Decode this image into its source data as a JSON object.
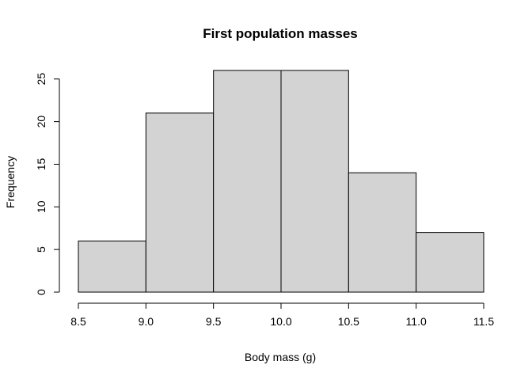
{
  "chart_data": {
    "type": "bar",
    "title": "First population masses",
    "xlabel": "Body mass (g)",
    "ylabel": "Frequency",
    "bins": [
      {
        "start": 8.5,
        "end": 9.0,
        "count": 6
      },
      {
        "start": 9.0,
        "end": 9.5,
        "count": 21
      },
      {
        "start": 9.5,
        "end": 10.0,
        "count": 26
      },
      {
        "start": 10.0,
        "end": 10.5,
        "count": 26
      },
      {
        "start": 10.5,
        "end": 11.0,
        "count": 14
      },
      {
        "start": 11.0,
        "end": 11.5,
        "count": 7
      }
    ],
    "x_ticks": [
      "8.5",
      "9.0",
      "9.5",
      "10.0",
      "10.5",
      "11.0",
      "11.5"
    ],
    "y_ticks": [
      "0",
      "5",
      "10",
      "15",
      "20",
      "25"
    ],
    "xlim": [
      8.5,
      11.5
    ],
    "ylim": [
      0,
      26
    ],
    "grid": false,
    "colors": {
      "bar_fill": "#d3d3d3",
      "bar_stroke": "#000000"
    }
  }
}
